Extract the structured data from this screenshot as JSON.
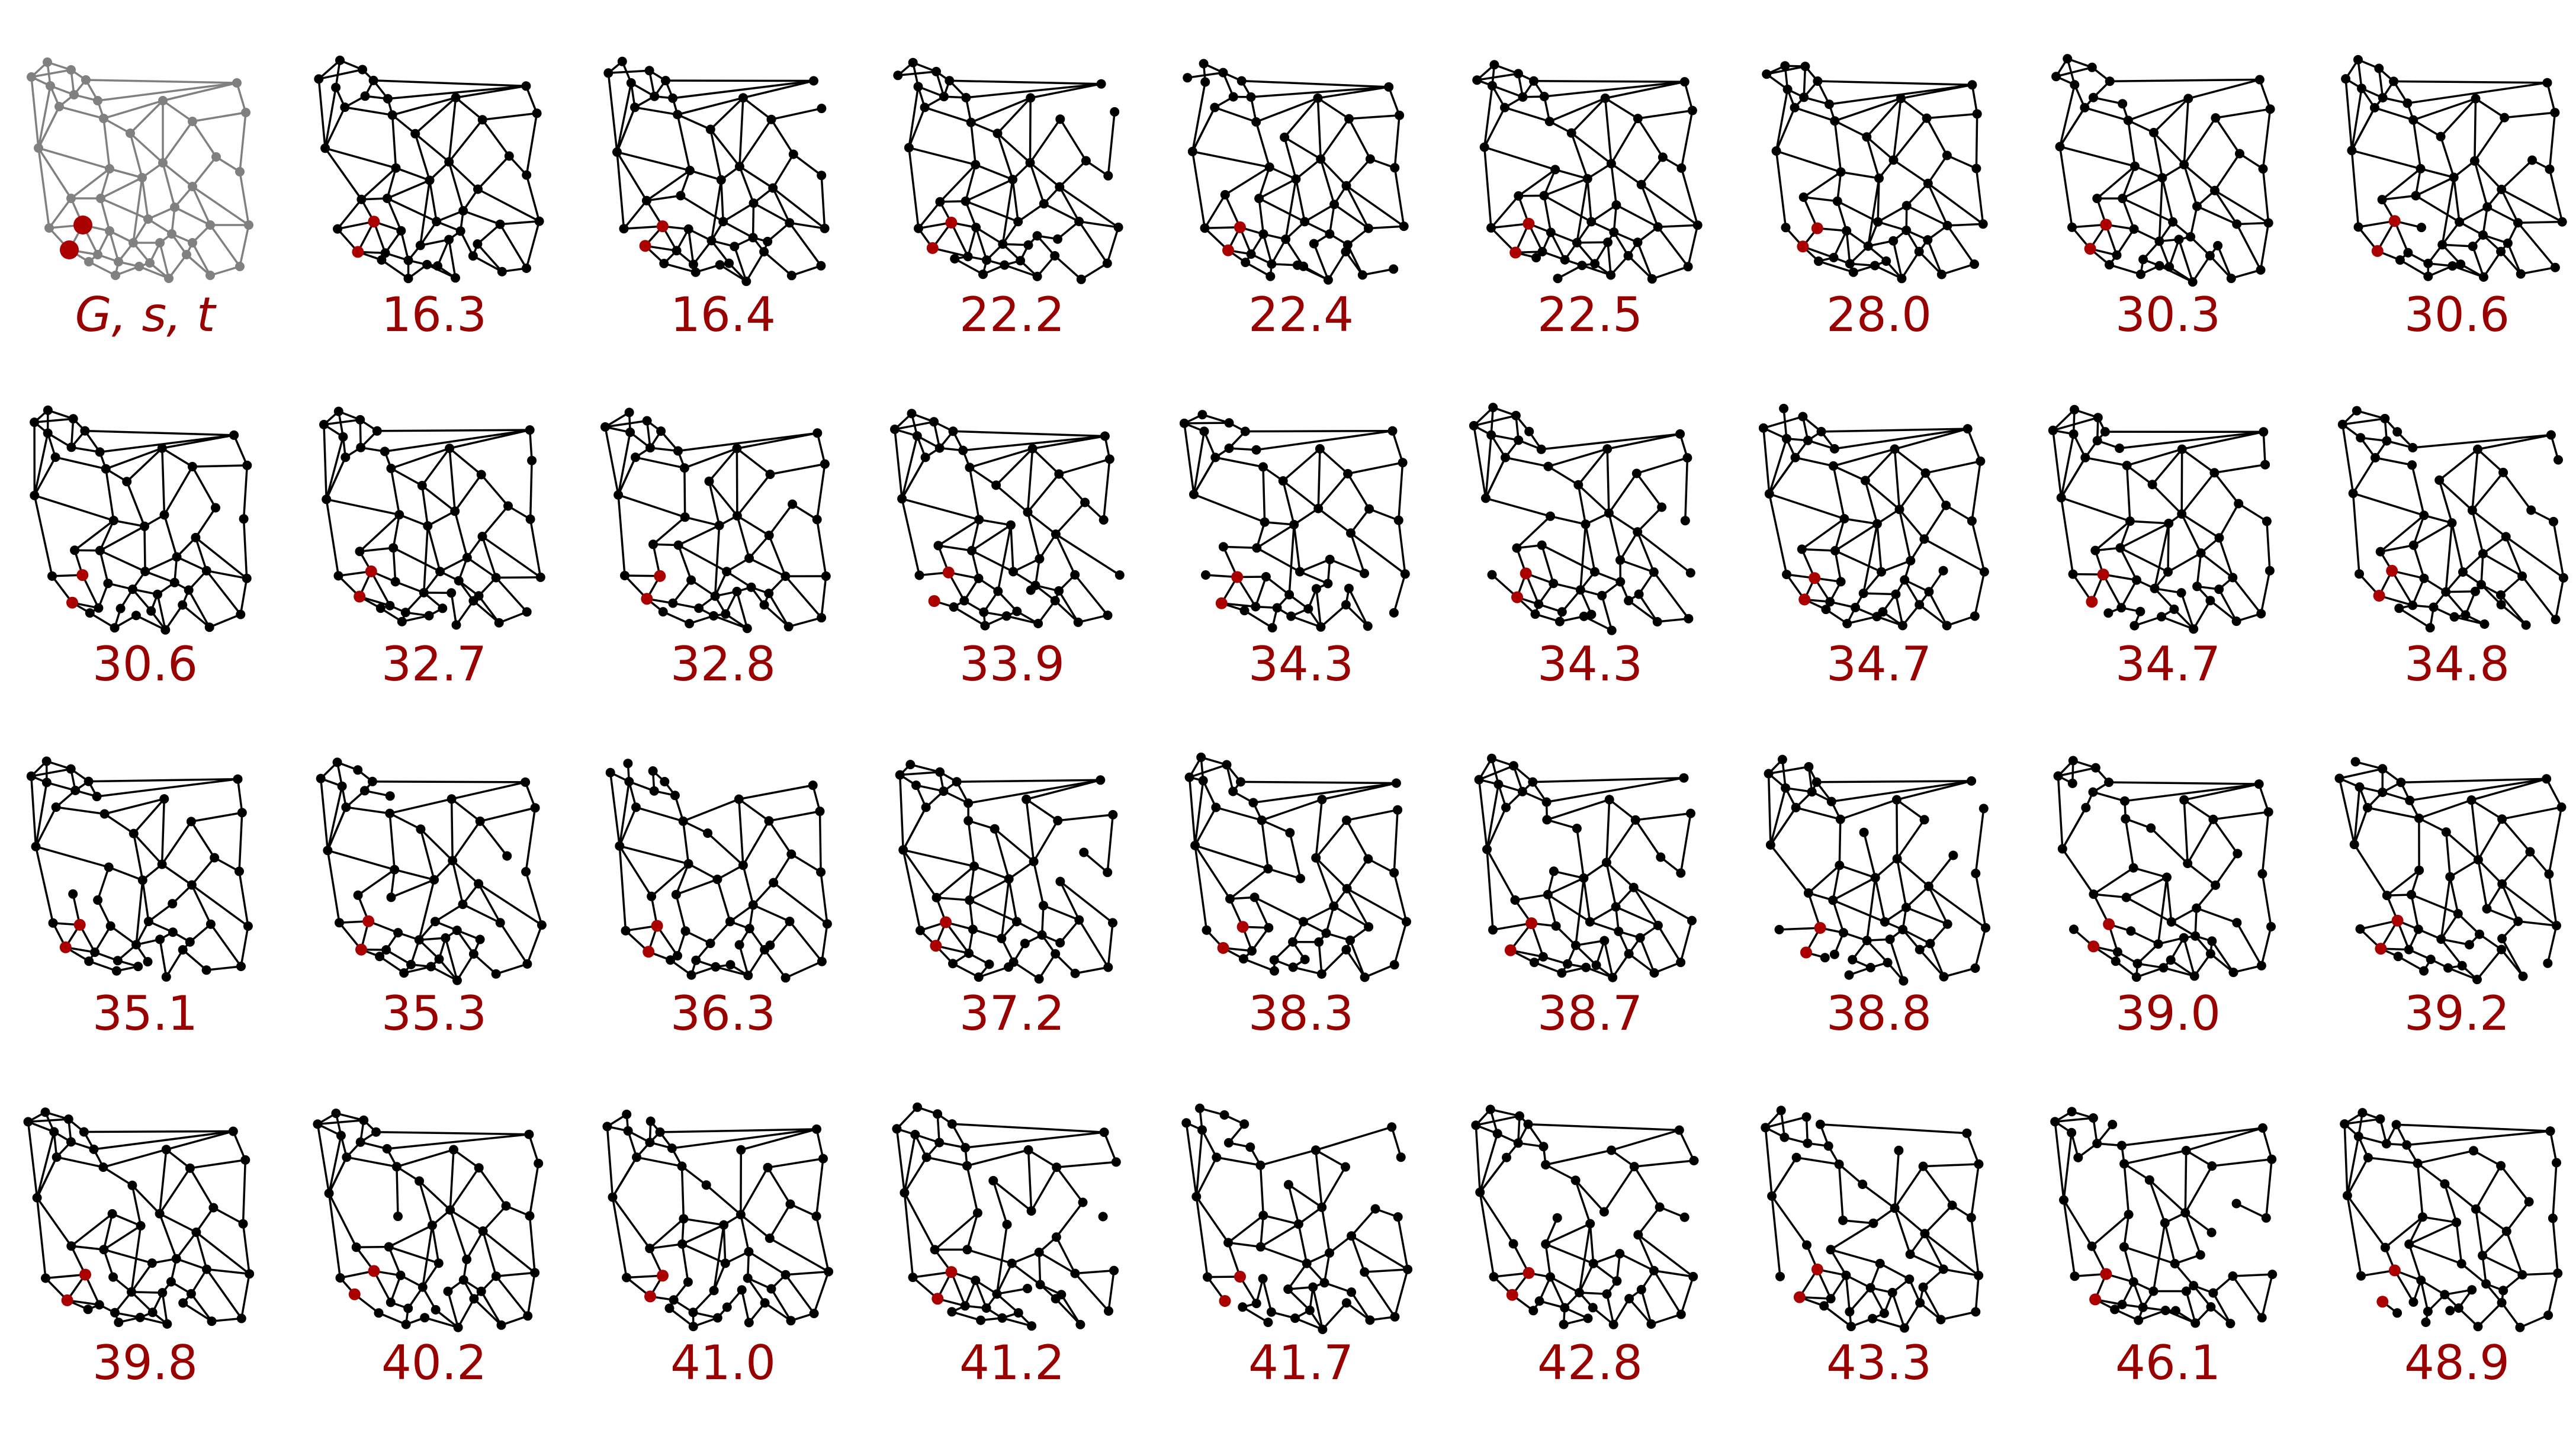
{
  "figure": {
    "captions": [
      "G, s, t",
      "16.3",
      "16.4",
      "22.2",
      "22.4",
      "22.5",
      "28.0",
      "30.3",
      "30.6",
      "30.6",
      "32.7",
      "32.8",
      "33.9",
      "34.3",
      "34.3",
      "34.7",
      "34.7",
      "34.8",
      "35.1",
      "35.3",
      "36.3",
      "37.2",
      "38.3",
      "38.7",
      "38.8",
      "39.0",
      "39.2",
      "39.8",
      "40.2",
      "41.0",
      "41.2",
      "41.7",
      "42.8",
      "43.3",
      "46.1",
      "48.9"
    ],
    "colors": {
      "caption": "#990000",
      "highlight_node": "#aa0000",
      "node": "#000000",
      "edge": "#000000",
      "first_panel_graph": "#808080"
    }
  }
}
